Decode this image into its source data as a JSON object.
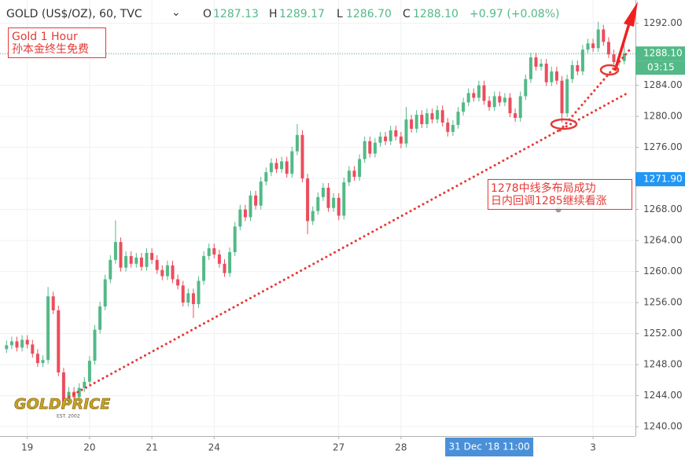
{
  "chart_data": {
    "type": "candlestick",
    "legend": {
      "symbol": "GOLD (US$/OZ), 60, TVC",
      "open_label": "O",
      "open": "1287.13",
      "high_label": "H",
      "high": "1289.17",
      "low_label": "L",
      "low": "1286.70",
      "close_label": "C",
      "close": "1288.10",
      "change": "+0.97 (+0.08%)"
    },
    "categories": [
      null,
      null,
      null,
      null,
      "19",
      null,
      null,
      null,
      null,
      null,
      null,
      null,
      null,
      null,
      null,
      null,
      "20",
      null,
      null,
      null,
      null,
      null,
      null,
      null,
      null,
      null,
      null,
      null,
      "21",
      null,
      null,
      null,
      null,
      null,
      null,
      null,
      null,
      null,
      null,
      null,
      "24",
      null,
      null,
      null,
      null,
      null,
      null,
      null,
      null,
      null,
      null,
      null,
      null,
      null,
      null,
      null,
      null,
      null,
      null,
      null,
      null,
      null,
      null,
      null,
      "27",
      null,
      null,
      null,
      null,
      null,
      null,
      null,
      null,
      null,
      null,
      null,
      "28",
      null,
      null,
      null,
      null,
      null,
      null,
      null,
      null,
      null,
      null,
      null,
      null,
      null,
      null,
      null,
      null,
      "31 Dec '18 11:00",
      null,
      null,
      null,
      null,
      null,
      null,
      null,
      null,
      null,
      null,
      null,
      null,
      null,
      null,
      null,
      null,
      null,
      null,
      null,
      "3",
      null,
      null,
      null,
      null,
      null,
      null
    ],
    "crosshair_category": 93,
    "open": [
      1250.0,
      1250.5,
      1251.0,
      1250.2,
      1251.2,
      1250.6,
      1249.4,
      1248.2,
      1248.6,
      1256.8,
      1255.0,
      1247.0,
      1243.2,
      1244.5,
      1243.8,
      1245.0,
      1245.8,
      1248.5,
      1252.5,
      1255.5,
      1259.0,
      1261.5,
      1263.8,
      1260.5,
      1262.0,
      1261.0,
      1261.8,
      1260.6,
      1262.4,
      1261.5,
      1260.2,
      1259.4,
      1260.8,
      1259.0,
      1258.2,
      1256.0,
      1257.2,
      1255.8,
      1258.8,
      1262.0,
      1263.0,
      1262.2,
      1261.0,
      1259.8,
      1262.5,
      1265.8,
      1268.0,
      1267.0,
      1269.8,
      1268.5,
      1271.6,
      1272.8,
      1274.0,
      1273.2,
      1274.2,
      1272.6,
      1275.5,
      1277.6,
      1272.0,
      1266.5,
      1267.8,
      1269.6,
      1270.8,
      1268.2,
      1269.5,
      1267.2,
      1271.5,
      1273.0,
      1272.2,
      1274.5,
      1276.8,
      1275.2,
      1276.6,
      1277.4,
      1276.8,
      1278.2,
      1277.4,
      1276.5,
      1279.6,
      1278.4,
      1280.2,
      1279.0,
      1280.4,
      1279.6,
      1280.8,
      1279.2,
      1278.0,
      1278.9,
      1280.6,
      1281.8,
      1283.0,
      1282.4,
      1284.0,
      1282.0,
      1281.2,
      1282.6,
      1281.8,
      1282.4,
      1280.4,
      1279.8,
      1282.6,
      1284.8,
      1287.6,
      1286.4,
      1286.8,
      1284.4,
      1285.8,
      1284.6,
      1280.4,
      1284.8,
      1286.6,
      1285.8,
      1288.6,
      1289.4,
      1288.8,
      1291.2,
      1289.6,
      1288.0,
      1287.0,
      1287.13
    ],
    "high": [
      1251.1,
      1251.6,
      1251.6,
      1251.8,
      1251.8,
      1251.2,
      1250.0,
      1249.2,
      1258.0,
      1257.4,
      1255.6,
      1247.6,
      1245.1,
      1245.1,
      1245.6,
      1246.4,
      1249.1,
      1253.1,
      1256.1,
      1259.6,
      1262.1,
      1266.6,
      1264.4,
      1262.6,
      1262.6,
      1262.4,
      1262.4,
      1263.0,
      1263.0,
      1262.1,
      1260.8,
      1261.4,
      1261.4,
      1259.6,
      1258.8,
      1257.8,
      1257.8,
      1259.4,
      1262.6,
      1263.6,
      1263.6,
      1262.8,
      1261.6,
      1263.1,
      1266.4,
      1268.6,
      1268.6,
      1270.4,
      1270.4,
      1272.2,
      1273.4,
      1274.6,
      1274.6,
      1274.8,
      1274.8,
      1276.1,
      1279.0,
      1278.2,
      1272.6,
      1268.4,
      1270.2,
      1271.4,
      1271.4,
      1270.1,
      1270.1,
      1272.1,
      1273.6,
      1273.6,
      1275.1,
      1277.4,
      1277.4,
      1277.2,
      1278.0,
      1278.0,
      1278.8,
      1278.8,
      1278.0,
      1281.2,
      1280.2,
      1280.8,
      1280.8,
      1281.0,
      1281.0,
      1281.4,
      1281.4,
      1279.8,
      1279.5,
      1281.2,
      1282.4,
      1283.6,
      1283.6,
      1284.6,
      1284.6,
      1282.6,
      1283.2,
      1283.2,
      1283.0,
      1283.0,
      1281.0,
      1283.2,
      1285.4,
      1288.2,
      1288.2,
      1287.4,
      1287.4,
      1286.4,
      1286.4,
      1285.2,
      1285.4,
      1287.2,
      1287.2,
      1289.2,
      1290.0,
      1290.0,
      1292.2,
      1291.8,
      1290.2,
      1288.6,
      1287.7,
      1289.17
    ],
    "low": [
      1249.5,
      1250.0,
      1249.7,
      1249.7,
      1250.1,
      1248.9,
      1247.7,
      1247.7,
      1248.1,
      1254.5,
      1246.5,
      1242.4,
      1242.7,
      1243.3,
      1243.3,
      1244.5,
      1245.3,
      1248.0,
      1252.0,
      1255.0,
      1258.5,
      1261.0,
      1260.0,
      1260.0,
      1260.5,
      1260.5,
      1260.1,
      1260.1,
      1261.0,
      1259.7,
      1258.9,
      1258.9,
      1258.5,
      1257.7,
      1255.5,
      1255.5,
      1254.0,
      1255.3,
      1258.3,
      1261.5,
      1261.7,
      1260.5,
      1259.3,
      1259.3,
      1262.0,
      1265.3,
      1266.5,
      1266.5,
      1268.0,
      1268.0,
      1271.1,
      1272.3,
      1272.7,
      1272.7,
      1272.1,
      1272.1,
      1275.0,
      1271.5,
      1264.8,
      1266.0,
      1267.3,
      1269.1,
      1267.7,
      1267.7,
      1266.6,
      1266.7,
      1271.0,
      1271.7,
      1271.7,
      1274.0,
      1274.7,
      1274.7,
      1276.1,
      1276.3,
      1276.3,
      1276.9,
      1275.9,
      1276.0,
      1277.9,
      1277.9,
      1278.5,
      1278.5,
      1279.1,
      1279.1,
      1278.7,
      1277.4,
      1277.5,
      1278.4,
      1280.1,
      1281.3,
      1281.9,
      1281.9,
      1281.5,
      1280.7,
      1280.7,
      1281.3,
      1281.3,
      1279.9,
      1279.3,
      1279.3,
      1282.1,
      1284.3,
      1285.9,
      1285.9,
      1283.9,
      1283.9,
      1284.1,
      1279.2,
      1279.9,
      1284.3,
      1285.3,
      1285.3,
      1288.1,
      1288.3,
      1288.3,
      1289.1,
      1287.5,
      1286.7,
      1286.5,
      1286.7
    ],
    "close": [
      1250.5,
      1251.0,
      1250.2,
      1251.2,
      1250.6,
      1249.4,
      1248.2,
      1248.6,
      1256.8,
      1255.0,
      1247.0,
      1243.2,
      1244.5,
      1243.8,
      1245.0,
      1245.8,
      1248.5,
      1252.5,
      1255.5,
      1259.0,
      1261.5,
      1263.8,
      1260.5,
      1262.0,
      1261.0,
      1261.8,
      1260.6,
      1262.4,
      1261.5,
      1260.2,
      1259.4,
      1260.8,
      1259.0,
      1258.2,
      1256.0,
      1257.2,
      1255.8,
      1258.8,
      1262.0,
      1263.0,
      1262.2,
      1261.0,
      1259.8,
      1262.5,
      1265.8,
      1268.0,
      1267.0,
      1269.8,
      1268.5,
      1271.6,
      1272.8,
      1274.0,
      1273.2,
      1274.2,
      1272.6,
      1275.5,
      1277.6,
      1272.0,
      1266.5,
      1267.8,
      1269.6,
      1270.8,
      1268.2,
      1269.5,
      1267.2,
      1271.5,
      1273.0,
      1272.2,
      1274.5,
      1276.8,
      1275.2,
      1276.6,
      1277.4,
      1276.8,
      1278.2,
      1277.4,
      1276.5,
      1279.6,
      1278.4,
      1280.2,
      1279.0,
      1280.4,
      1279.6,
      1280.8,
      1279.2,
      1278.0,
      1278.9,
      1280.6,
      1281.8,
      1283.0,
      1282.4,
      1284.0,
      1282.0,
      1281.2,
      1282.6,
      1281.8,
      1282.4,
      1280.4,
      1279.8,
      1282.6,
      1284.8,
      1287.6,
      1286.4,
      1286.8,
      1284.4,
      1285.8,
      1284.6,
      1280.4,
      1284.8,
      1286.6,
      1285.8,
      1288.6,
      1289.4,
      1288.8,
      1291.2,
      1289.6,
      1288.0,
      1287.0,
      1287.13,
      1288.1
    ],
    "up_color": "#53b987",
    "down_color": "#eb4d5c",
    "ylim": [
      1238.8,
      1295.0
    ],
    "yticks": [
      {
        "value": 1240,
        "label": "1240.00"
      },
      {
        "value": 1244,
        "label": "1244.00"
      },
      {
        "value": 1248,
        "label": "1248.00"
      },
      {
        "value": 1252,
        "label": "1252.00"
      },
      {
        "value": 1256,
        "label": "1256.00"
      },
      {
        "value": 1260,
        "label": "1260.00"
      },
      {
        "value": 1264,
        "label": "1264.00"
      },
      {
        "value": 1268,
        "label": "1268.00"
      },
      {
        "value": 1272,
        "label": "1272.00"
      },
      {
        "value": 1276,
        "label": "1276.00"
      },
      {
        "value": 1280,
        "label": "1280.00"
      },
      {
        "value": 1284,
        "label": "1284.00"
      },
      {
        "value": 1288,
        "label": "1288.00"
      },
      {
        "value": 1292,
        "label": "1292.00"
      }
    ],
    "grid": true,
    "last_price": {
      "value": 1288.1,
      "label": "1288.10",
      "color": "#53b987"
    },
    "countdown": "03:15",
    "marker_price": {
      "value": 1271.9,
      "label": "1271.90",
      "color": "#2196f3"
    },
    "annotations": [
      {
        "lines": [
          "Gold 1 Hour",
          "孙本金终生免费"
        ]
      },
      {
        "lines": [
          "1278中线多布局成功",
          "日内回调1285继续看涨"
        ]
      }
    ],
    "watermark": {
      "name": "GOLDPRICE",
      "est": "EST. 2002"
    }
  }
}
